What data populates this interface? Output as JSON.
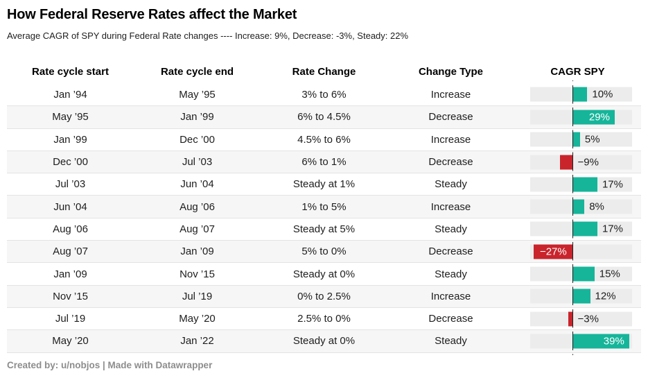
{
  "header": {
    "title": "How Federal Reserve Rates affect the Market",
    "subtitle": "Average CAGR of SPY during Federal Rate changes ---- Increase: 9%, Decrease: -3%, Steady: 22%"
  },
  "table": {
    "columns": [
      "Rate cycle start",
      "Rate cycle end",
      "Rate Change",
      "Change Type",
      "CAGR SPY"
    ],
    "rows": [
      {
        "start": "Jan ’94",
        "end": "May ’95",
        "change": "3% to 6%",
        "type": "Increase",
        "cagr": 10,
        "label": "10%",
        "label_inside": false
      },
      {
        "start": "May ’95",
        "end": "Jan ’99",
        "change": "6% to 4.5%",
        "type": "Decrease",
        "cagr": 29,
        "label": "29%",
        "label_inside": true
      },
      {
        "start": "Jan ’99",
        "end": "Dec ’00",
        "change": "4.5% to 6%",
        "type": "Increase",
        "cagr": 5,
        "label": "5%",
        "label_inside": false
      },
      {
        "start": "Dec ’00",
        "end": "Jul ’03",
        "change": "6% to 1%",
        "type": "Decrease",
        "cagr": -9,
        "label": "−9%",
        "label_inside": false
      },
      {
        "start": "Jul ’03",
        "end": "Jun ’04",
        "change": "Steady at 1%",
        "type": "Steady",
        "cagr": 17,
        "label": "17%",
        "label_inside": false
      },
      {
        "start": "Jun ’04",
        "end": "Aug ’06",
        "change": "1% to 5%",
        "type": "Increase",
        "cagr": 8,
        "label": "8%",
        "label_inside": false
      },
      {
        "start": "Aug ’06",
        "end": "Aug ’07",
        "change": "Steady at 5%",
        "type": "Steady",
        "cagr": 17,
        "label": "17%",
        "label_inside": false
      },
      {
        "start": "Aug ’07",
        "end": "Jan ’09",
        "change": "5% to 0%",
        "type": "Decrease",
        "cagr": -27,
        "label": "−27%",
        "label_inside": true
      },
      {
        "start": "Jan ’09",
        "end": "Nov ’15",
        "change": "Steady at 0%",
        "type": "Steady",
        "cagr": 15,
        "label": "15%",
        "label_inside": false
      },
      {
        "start": "Nov ’15",
        "end": "Jul ’19",
        "change": "0% to 2.5%",
        "type": "Increase",
        "cagr": 12,
        "label": "12%",
        "label_inside": false
      },
      {
        "start": "Jul ’19",
        "end": "May ’20",
        "change": "2.5% to 0%",
        "type": "Decrease",
        "cagr": -3,
        "label": "−3%",
        "label_inside": false
      },
      {
        "start": "May ’20",
        "end": "Jan ’22",
        "change": "Steady at 0%",
        "type": "Steady",
        "cagr": 39,
        "label": "39%",
        "label_inside": true
      }
    ]
  },
  "chart_data": {
    "type": "bar",
    "orientation": "horizontal",
    "title": "How Federal Reserve Rates affect the Market",
    "subtitle": "Average CAGR of SPY during Federal Rate changes ---- Increase: 9%, Decrease: -3%, Steady: 22%",
    "categories": [
      "Jan ’94–May ’95",
      "May ’95–Jan ’99",
      "Jan ’99–Dec ’00",
      "Dec ’00–Jul ’03",
      "Jul ’03–Jun ’04",
      "Jun ’04–Aug ’06",
      "Aug ’06–Aug ’07",
      "Aug ’07–Jan ’09",
      "Jan ’09–Nov ’15",
      "Nov ’15–Jul ’19",
      "Jul ’19–May ’20",
      "May ’20–Jan ’22"
    ],
    "values": [
      10,
      29,
      5,
      -9,
      17,
      8,
      17,
      -27,
      15,
      12,
      -3,
      39
    ],
    "value_unit": "%",
    "series_label": "CAGR SPY",
    "xlim": [
      -29.5,
      41
    ],
    "averages": {
      "Increase": 9,
      "Decrease": -3,
      "Steady": 22
    },
    "grid": false,
    "zero_baseline": true
  },
  "colors": {
    "positive": "#16b59a",
    "negative": "#c9242c",
    "bar_track": "#ececec",
    "stripe": "#f6f6f6",
    "row_border": "#e3e3e3",
    "baseline": "#1d1d1d",
    "text": "#1d1d1d",
    "footer_text": "#8d8d8d"
  },
  "footer": {
    "byline": "Created by: u/nobjos | Made with Datawrapper"
  }
}
